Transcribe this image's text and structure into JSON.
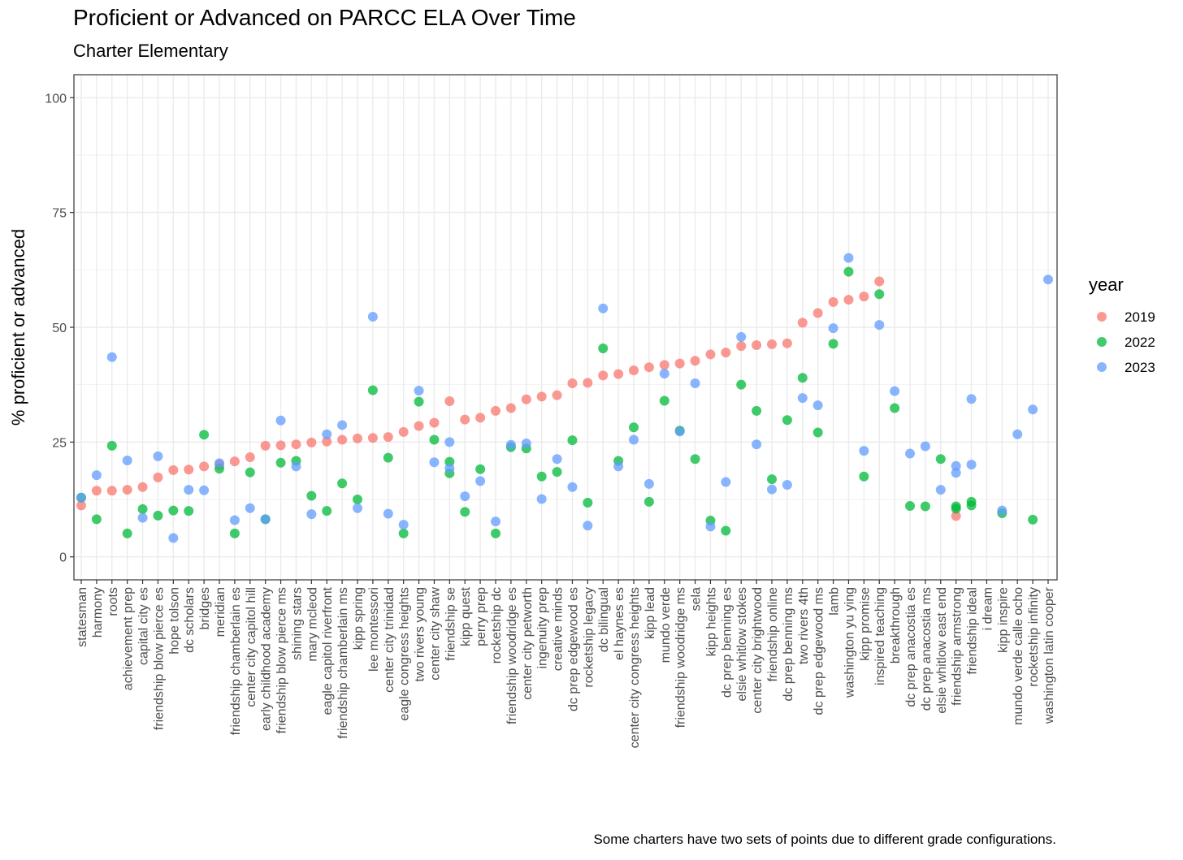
{
  "title": "Proficient or Advanced on PARCC ELA Over Time",
  "subtitle": "Charter Elementary",
  "caption": "Some charters have two sets of points due to different grade configurations.",
  "chart_data": {
    "type": "scatter",
    "ylabel": "% proficient or advanced",
    "xlabel": "",
    "ylim": [
      -5,
      105
    ],
    "yticks": [
      0,
      25,
      50,
      75,
      100
    ],
    "grid": true,
    "legend": {
      "title": "year",
      "placement": "right"
    },
    "series_colors": {
      "2019": "#F8766D",
      "2022": "#00BA38",
      "2023": "#619CFF"
    },
    "categories": [
      "statesman",
      "harmony",
      "roots",
      "achievement prep",
      "capital city es",
      "friendship blow pierce es",
      "hope tolson",
      "dc scholars",
      "bridges",
      "meridian",
      "friendship chamberlain es",
      "center city capitol hill",
      "early childhood academy",
      "friendship blow pierce ms",
      "shining stars",
      "mary mcleod",
      "eagle capitol riverfront",
      "friendship chamberlain ms",
      "kipp spring",
      "lee montessori",
      "center city trinidad",
      "eagle congress heights",
      "two rivers young",
      "center city shaw",
      "friendship se",
      "kipp quest",
      "perry prep",
      "rocketship dc",
      "friendship woodridge es",
      "center city petworth",
      "ingenuity prep",
      "creative minds",
      "dc prep edgewood es",
      "rocketship legacy",
      "dc bilingual",
      "el haynes es",
      "center city congress heights",
      "kipp lead",
      "mundo verde",
      "friendship woodridge ms",
      "sela",
      "kipp heights",
      "dc prep benning es",
      "elsie whitlow stokes",
      "center city brightwood",
      "friendship online",
      "dc prep benning ms",
      "two rivers 4th",
      "dc prep edgewood ms",
      "lamb",
      "washington yu ying",
      "kipp promise",
      "inspired teaching",
      "breakthrough",
      "dc prep anacostia es",
      "dc prep anacostia ms",
      "elsie whitlow east end",
      "friendship armstrong",
      "friendship ideal",
      "i dream",
      "kipp inspire",
      "mundo verde calle ocho",
      "rocketship infinity",
      "washington latin cooper"
    ],
    "series": [
      {
        "name": "2019",
        "points": [
          [
            "statesman",
            11.2
          ],
          [
            "harmony",
            14.4
          ],
          [
            "roots",
            14.4
          ],
          [
            "achievement prep",
            14.6
          ],
          [
            "capital city es",
            15.2
          ],
          [
            "friendship blow pierce es",
            17.3
          ],
          [
            "hope tolson",
            18.9
          ],
          [
            "dc scholars",
            19.0
          ],
          [
            "bridges",
            19.7
          ],
          [
            "meridian",
            20.1
          ],
          [
            "friendship chamberlain es",
            20.8
          ],
          [
            "center city capitol hill",
            21.7
          ],
          [
            "early childhood academy",
            24.2
          ],
          [
            "friendship blow pierce ms",
            24.3
          ],
          [
            "shining stars",
            24.5
          ],
          [
            "mary mcleod",
            24.9
          ],
          [
            "eagle capitol riverfront",
            25.1
          ],
          [
            "friendship chamberlain ms",
            25.5
          ],
          [
            "kipp spring",
            25.8
          ],
          [
            "lee montessori",
            25.9
          ],
          [
            "center city trinidad",
            26.1
          ],
          [
            "eagle congress heights",
            27.2
          ],
          [
            "two rivers young",
            28.5
          ],
          [
            "center city shaw",
            29.2
          ],
          [
            "friendship se",
            33.9
          ],
          [
            "kipp quest",
            29.9
          ],
          [
            "perry prep",
            30.3
          ],
          [
            "rocketship dc",
            31.8
          ],
          [
            "friendship woodridge es",
            32.4
          ],
          [
            "center city petworth",
            34.3
          ],
          [
            "ingenuity prep",
            34.9
          ],
          [
            "creative minds",
            35.2
          ],
          [
            "dc prep edgewood es",
            37.8
          ],
          [
            "rocketship legacy",
            37.9
          ],
          [
            "dc bilingual",
            39.5
          ],
          [
            "el haynes es",
            39.8
          ],
          [
            "center city congress heights",
            40.6
          ],
          [
            "kipp lead",
            41.3
          ],
          [
            "mundo verde",
            41.8
          ],
          [
            "friendship woodridge ms",
            42.1
          ],
          [
            "sela",
            42.7
          ],
          [
            "kipp heights",
            44.1
          ],
          [
            "dc prep benning es",
            44.5
          ],
          [
            "elsie whitlow stokes",
            45.9
          ],
          [
            "center city brightwood",
            46.1
          ],
          [
            "friendship online",
            46.3
          ],
          [
            "dc prep benning ms",
            46.5
          ],
          [
            "two rivers 4th",
            51.0
          ],
          [
            "dc prep edgewood ms",
            53.1
          ],
          [
            "lamb",
            55.5
          ],
          [
            "washington yu ying",
            56.0
          ],
          [
            "kipp promise",
            56.7
          ],
          [
            "inspired teaching",
            60.0
          ],
          [
            "friendship armstrong",
            8.9
          ]
        ]
      },
      {
        "name": "2022",
        "points": [
          [
            "statesman",
            12.9
          ],
          [
            "harmony",
            8.2
          ],
          [
            "roots",
            24.2
          ],
          [
            "achievement prep",
            5.1
          ],
          [
            "capital city es",
            10.4
          ],
          [
            "friendship blow pierce es",
            9.0
          ],
          [
            "hope tolson",
            10.1
          ],
          [
            "dc scholars",
            10.0
          ],
          [
            "bridges",
            26.6
          ],
          [
            "meridian",
            19.2
          ],
          [
            "friendship chamberlain es",
            5.1
          ],
          [
            "center city capitol hill",
            18.4
          ],
          [
            "early childhood academy",
            8.2
          ],
          [
            "friendship blow pierce ms",
            20.5
          ],
          [
            "shining stars",
            20.9
          ],
          [
            "mary mcleod",
            13.3
          ],
          [
            "eagle capitol riverfront",
            10.0
          ],
          [
            "friendship chamberlain ms",
            16.0
          ],
          [
            "kipp spring",
            12.5
          ],
          [
            "lee montessori",
            36.3
          ],
          [
            "center city trinidad",
            21.6
          ],
          [
            "eagle congress heights",
            5.1
          ],
          [
            "two rivers young",
            33.8
          ],
          [
            "center city shaw",
            25.5
          ],
          [
            "friendship se",
            20.7
          ],
          [
            "friendship se",
            18.2
          ],
          [
            "kipp quest",
            9.8
          ],
          [
            "perry prep",
            19.1
          ],
          [
            "rocketship dc",
            5.1
          ],
          [
            "friendship woodridge es",
            23.9
          ],
          [
            "center city petworth",
            23.6
          ],
          [
            "ingenuity prep",
            17.5
          ],
          [
            "creative minds",
            18.5
          ],
          [
            "dc prep edgewood es",
            25.4
          ],
          [
            "rocketship legacy",
            11.8
          ],
          [
            "dc bilingual",
            45.4
          ],
          [
            "el haynes es",
            20.9
          ],
          [
            "center city congress heights",
            28.2
          ],
          [
            "kipp lead",
            12.0
          ],
          [
            "mundo verde",
            34.0
          ],
          [
            "friendship woodridge ms",
            27.5
          ],
          [
            "sela",
            21.3
          ],
          [
            "kipp heights",
            7.9
          ],
          [
            "dc prep benning es",
            5.7
          ],
          [
            "elsie whitlow stokes",
            37.5
          ],
          [
            "center city brightwood",
            31.8
          ],
          [
            "friendship online",
            16.9
          ],
          [
            "dc prep benning ms",
            29.8
          ],
          [
            "two rivers 4th",
            39.0
          ],
          [
            "dc prep edgewood ms",
            27.1
          ],
          [
            "lamb",
            46.4
          ],
          [
            "washington yu ying",
            62.1
          ],
          [
            "kipp promise",
            17.5
          ],
          [
            "inspired teaching",
            57.2
          ],
          [
            "breakthrough",
            32.4
          ],
          [
            "dc prep anacostia es",
            11.1
          ],
          [
            "dc prep anacostia ms",
            11.0
          ],
          [
            "elsie whitlow east end",
            21.3
          ],
          [
            "friendship armstrong",
            11.0
          ],
          [
            "friendship armstrong",
            10.5
          ],
          [
            "friendship ideal",
            12.0
          ],
          [
            "friendship ideal",
            11.2
          ],
          [
            "kipp inspire",
            9.5
          ],
          [
            "rocketship infinity",
            8.1
          ]
        ]
      },
      {
        "name": "2023",
        "points": [
          [
            "statesman",
            12.9
          ],
          [
            "harmony",
            17.8
          ],
          [
            "roots",
            43.5
          ],
          [
            "achievement prep",
            21.0
          ],
          [
            "capital city es",
            8.5
          ],
          [
            "friendship blow pierce es",
            21.9
          ],
          [
            "hope tolson",
            4.1
          ],
          [
            "dc scholars",
            14.6
          ],
          [
            "bridges",
            14.5
          ],
          [
            "meridian",
            20.4
          ],
          [
            "friendship chamberlain es",
            8.0
          ],
          [
            "center city capitol hill",
            10.6
          ],
          [
            "early childhood academy",
            8.2
          ],
          [
            "friendship blow pierce ms",
            29.7
          ],
          [
            "shining stars",
            19.7
          ],
          [
            "mary mcleod",
            9.3
          ],
          [
            "eagle capitol riverfront",
            26.7
          ],
          [
            "friendship chamberlain ms",
            28.7
          ],
          [
            "kipp spring",
            10.6
          ],
          [
            "lee montessori",
            52.3
          ],
          [
            "center city trinidad",
            9.4
          ],
          [
            "eagle congress heights",
            7.0
          ],
          [
            "two rivers young",
            36.2
          ],
          [
            "center city shaw",
            20.6
          ],
          [
            "friendship se",
            25.0
          ],
          [
            "friendship se",
            19.3
          ],
          [
            "kipp quest",
            13.2
          ],
          [
            "perry prep",
            16.5
          ],
          [
            "rocketship dc",
            7.7
          ],
          [
            "friendship woodridge es",
            24.4
          ],
          [
            "center city petworth",
            24.7
          ],
          [
            "ingenuity prep",
            12.6
          ],
          [
            "creative minds",
            21.3
          ],
          [
            "dc prep edgewood es",
            15.2
          ],
          [
            "rocketship legacy",
            6.8
          ],
          [
            "dc bilingual",
            54.1
          ],
          [
            "el haynes es",
            19.7
          ],
          [
            "center city congress heights",
            25.5
          ],
          [
            "kipp lead",
            15.9
          ],
          [
            "mundo verde",
            39.9
          ],
          [
            "friendship woodridge ms",
            27.3
          ],
          [
            "sela",
            37.8
          ],
          [
            "kipp heights",
            6.6
          ],
          [
            "dc prep benning es",
            16.3
          ],
          [
            "elsie whitlow stokes",
            47.9
          ],
          [
            "center city brightwood",
            24.5
          ],
          [
            "friendship online",
            14.7
          ],
          [
            "dc prep benning ms",
            15.7
          ],
          [
            "two rivers 4th",
            34.6
          ],
          [
            "dc prep edgewood ms",
            33.0
          ],
          [
            "lamb",
            49.8
          ],
          [
            "washington yu ying",
            65.1
          ],
          [
            "kipp promise",
            23.1
          ],
          [
            "inspired teaching",
            50.5
          ],
          [
            "breakthrough",
            36.1
          ],
          [
            "dc prep anacostia es",
            22.5
          ],
          [
            "dc prep anacostia ms",
            24.1
          ],
          [
            "elsie whitlow east end",
            14.6
          ],
          [
            "friendship armstrong",
            19.8
          ],
          [
            "friendship armstrong",
            18.3
          ],
          [
            "friendship ideal",
            34.4
          ],
          [
            "friendship ideal",
            20.1
          ],
          [
            "kipp inspire",
            10.1
          ],
          [
            "mundo verde calle ocho",
            26.7
          ],
          [
            "rocketship infinity",
            32.1
          ],
          [
            "washington latin cooper",
            60.4
          ]
        ]
      }
    ]
  }
}
